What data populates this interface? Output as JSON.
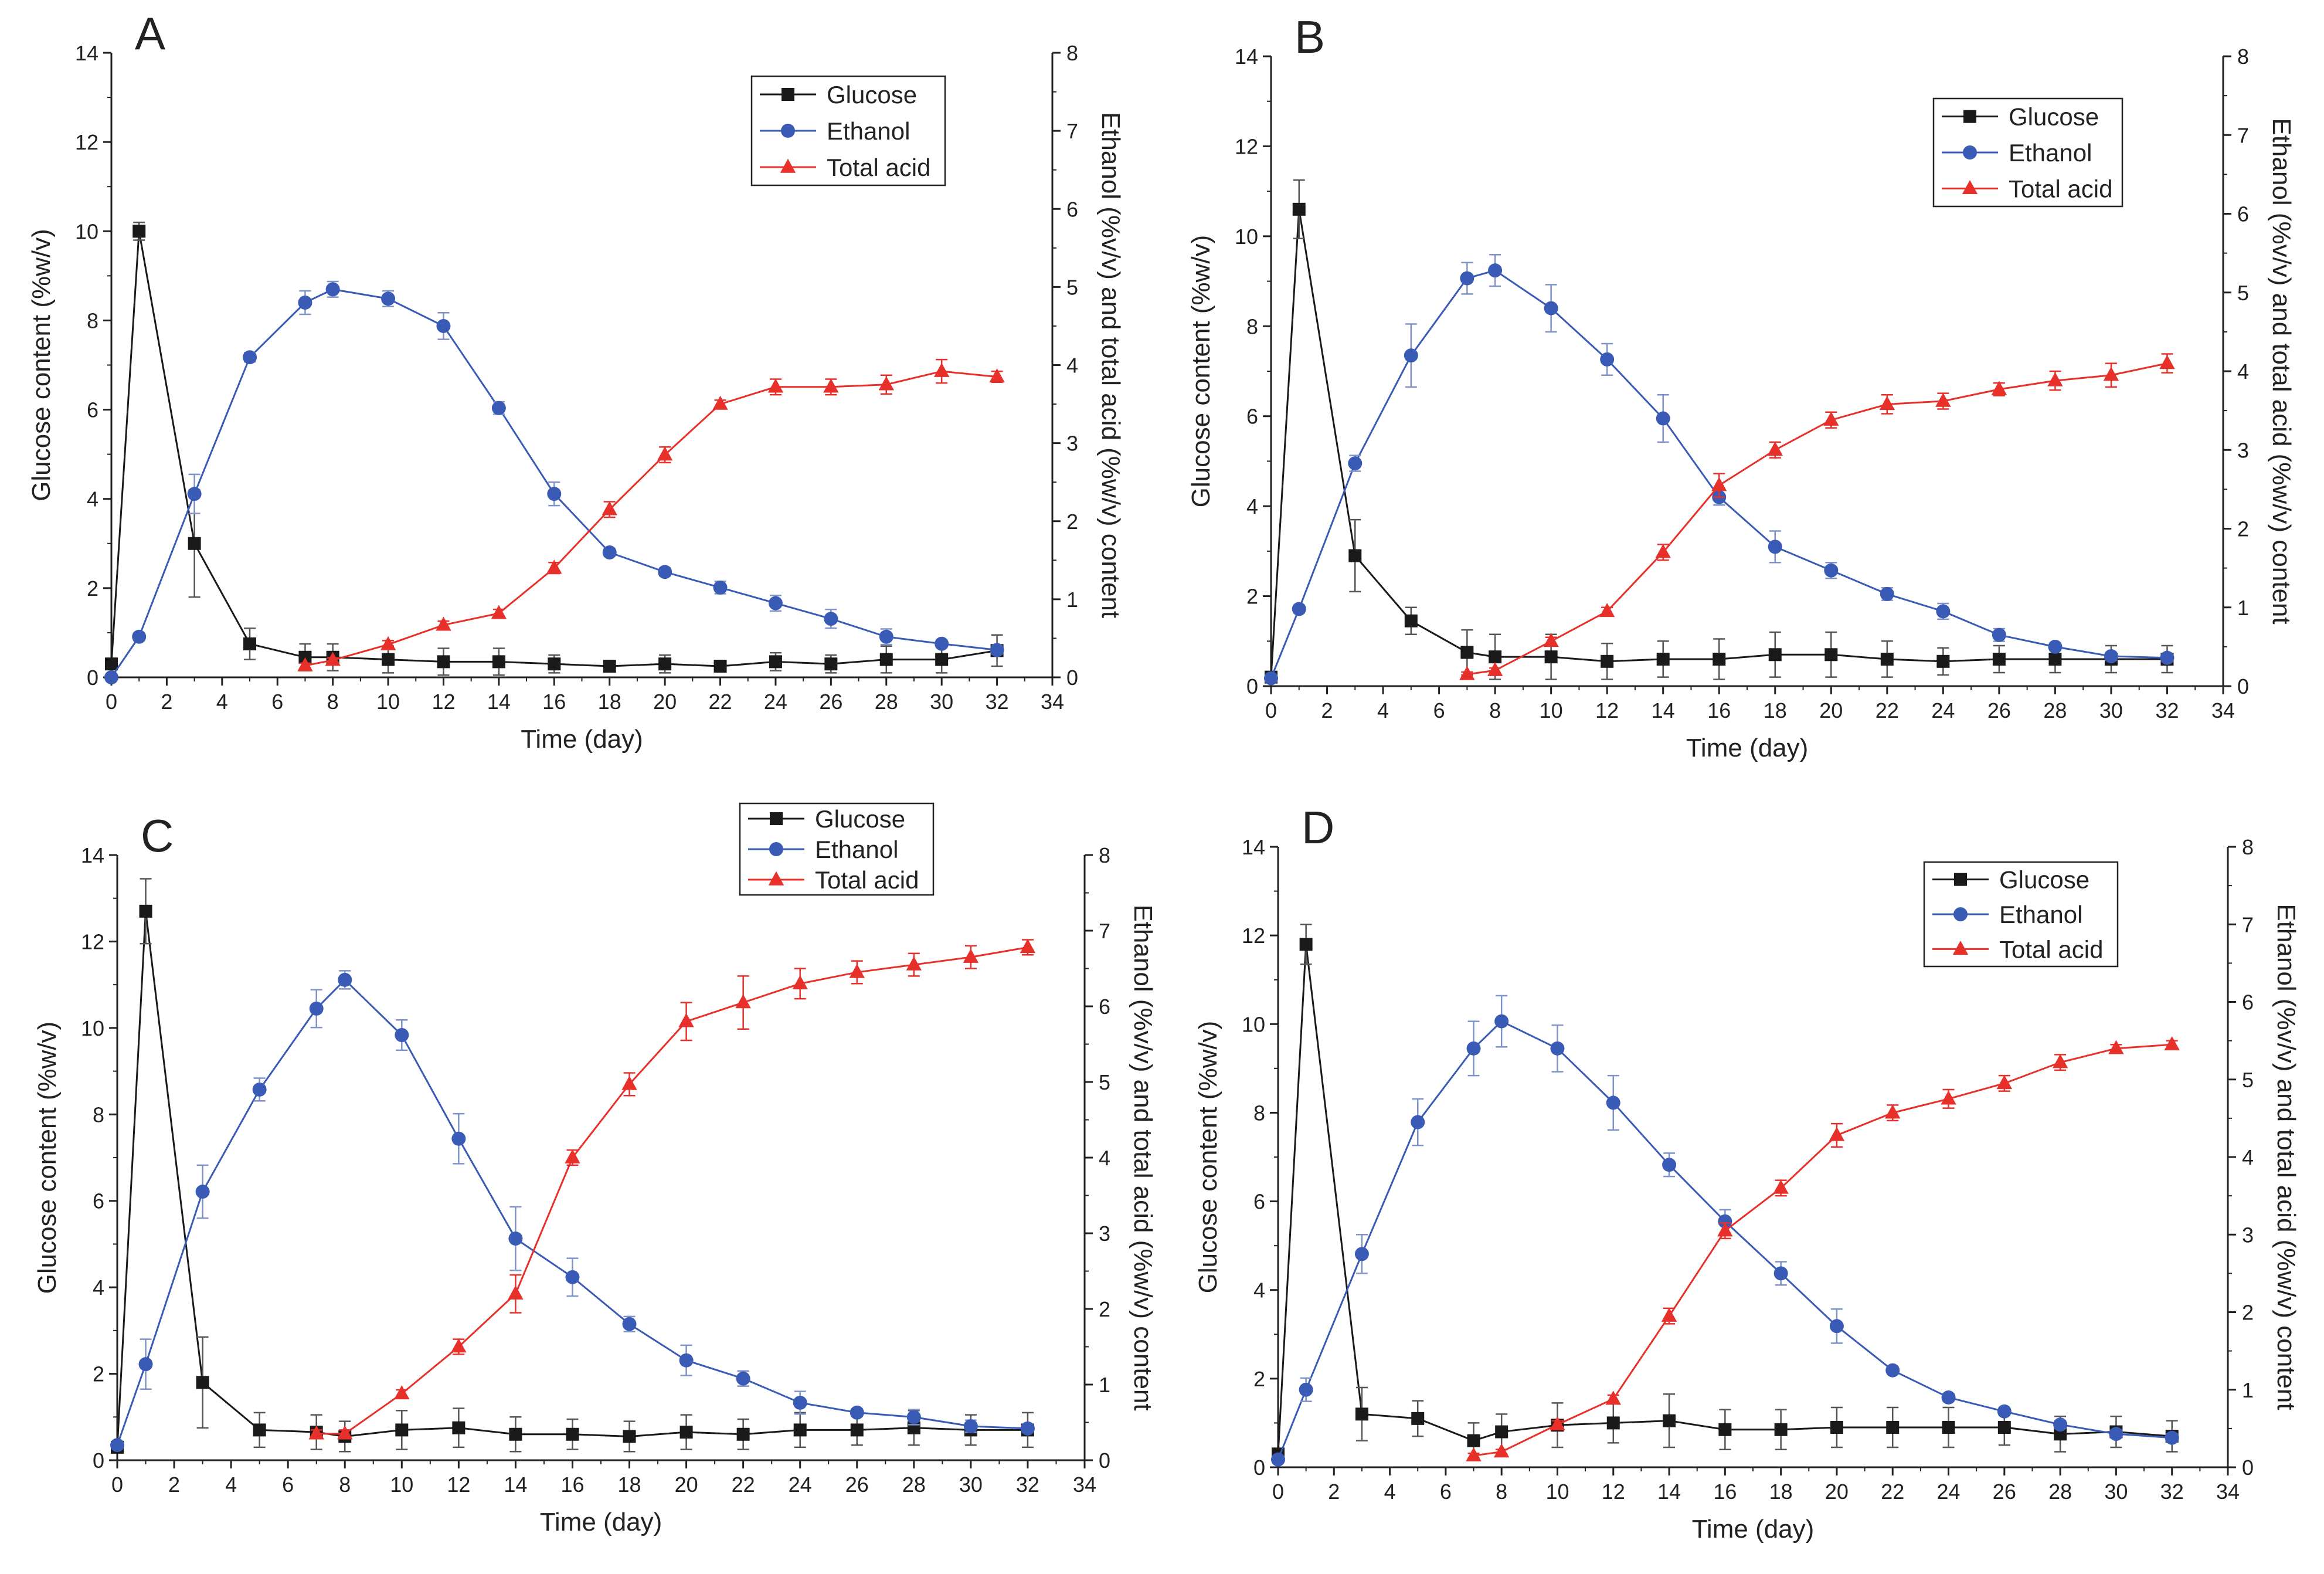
{
  "colors": {
    "glucose": "#1a1a1a",
    "ethanol": "#3a5bb5",
    "total_acid": "#e8302a",
    "error_ethanol": "#7f93c9",
    "error_glucose": "#555555",
    "error_acid": "#e8302a"
  },
  "chart_data": [
    {
      "type": "line",
      "panel": "A",
      "xlabel": "Time (day)",
      "ylabel": "Glucose content (%w/v)",
      "y2label": "Ethanol (%v/v) and total acid (%w/v) content",
      "xlim": [
        0,
        34
      ],
      "xticks": [
        0,
        2,
        4,
        6,
        8,
        10,
        12,
        14,
        16,
        18,
        20,
        22,
        24,
        26,
        28,
        30,
        32,
        34
      ],
      "ylim": [
        0,
        14
      ],
      "yticks": [
        0,
        2,
        4,
        6,
        8,
        10,
        12,
        14
      ],
      "y2lim": [
        0,
        8
      ],
      "y2ticks": [
        0,
        1,
        2,
        3,
        4,
        5,
        6,
        7,
        8
      ],
      "legend_position": "top-right",
      "series": [
        {
          "name": "Glucose",
          "axis": "left",
          "marker": "square",
          "color": "#1a1a1a",
          "x": [
            0,
            1,
            3,
            5,
            7,
            8,
            10,
            12,
            14,
            16,
            18,
            20,
            22,
            24,
            26,
            28,
            30,
            32
          ],
          "y": [
            0.3,
            10.0,
            3.0,
            0.75,
            0.45,
            0.45,
            0.4,
            0.35,
            0.35,
            0.3,
            0.25,
            0.3,
            0.25,
            0.35,
            0.3,
            0.4,
            0.4,
            0.6
          ],
          "err": [
            0.1,
            0.2,
            1.2,
            0.35,
            0.3,
            0.3,
            0.3,
            0.3,
            0.3,
            0.2,
            0.1,
            0.2,
            0.1,
            0.2,
            0.2,
            0.3,
            0.3,
            0.35
          ]
        },
        {
          "name": "Ethanol",
          "axis": "right",
          "marker": "circle",
          "color": "#3a5bb5",
          "x": [
            0,
            1,
            3,
            5,
            7,
            8,
            10,
            12,
            14,
            16,
            18,
            20,
            22,
            24,
            26,
            28,
            30,
            32
          ],
          "y": [
            0.0,
            0.52,
            2.35,
            4.1,
            4.8,
            4.97,
            4.85,
            4.5,
            3.45,
            2.35,
            1.6,
            1.35,
            1.15,
            0.95,
            0.75,
            0.52,
            0.43,
            0.35
          ],
          "err": [
            0,
            0.05,
            0.25,
            0.06,
            0.15,
            0.1,
            0.1,
            0.17,
            0.08,
            0.15,
            0.05,
            0.05,
            0.08,
            0.1,
            0.12,
            0.1,
            0.05,
            0.05
          ]
        },
        {
          "name": "Total acid",
          "axis": "right",
          "marker": "triangle",
          "color": "#e8302a",
          "x": [
            7,
            8,
            10,
            12,
            14,
            16,
            18,
            20,
            22,
            24,
            26,
            28,
            30,
            32
          ],
          "y": [
            0.15,
            0.22,
            0.42,
            0.67,
            0.82,
            1.4,
            2.15,
            2.85,
            3.5,
            3.72,
            3.72,
            3.75,
            3.92,
            3.85
          ],
          "err": [
            0.03,
            0.03,
            0.05,
            0.05,
            0.05,
            0.07,
            0.1,
            0.1,
            0.05,
            0.1,
            0.1,
            0.12,
            0.15,
            0.07
          ]
        }
      ]
    },
    {
      "type": "line",
      "panel": "B",
      "xlabel": "Time (day)",
      "ylabel": "Glucose content (%w/v)",
      "y2label": "Ethanol (%v/v) and total acid (%w/v) content",
      "xlim": [
        0,
        34
      ],
      "xticks": [
        0,
        2,
        4,
        6,
        8,
        10,
        12,
        14,
        16,
        18,
        20,
        22,
        24,
        26,
        28,
        30,
        32,
        34
      ],
      "ylim": [
        0,
        14
      ],
      "yticks": [
        0,
        2,
        4,
        6,
        8,
        10,
        12,
        14
      ],
      "y2lim": [
        0,
        8
      ],
      "y2ticks": [
        0,
        1,
        2,
        3,
        4,
        5,
        6,
        7,
        8
      ],
      "legend_position": "top-right",
      "series": [
        {
          "name": "Glucose",
          "axis": "left",
          "marker": "square",
          "color": "#1a1a1a",
          "x": [
            0,
            1,
            3,
            5,
            7,
            8,
            10,
            12,
            14,
            16,
            18,
            20,
            22,
            24,
            26,
            28,
            30,
            32
          ],
          "y": [
            0.2,
            10.6,
            2.9,
            1.45,
            0.75,
            0.65,
            0.65,
            0.55,
            0.6,
            0.6,
            0.7,
            0.7,
            0.6,
            0.55,
            0.6,
            0.6,
            0.6,
            0.6
          ],
          "err": [
            0.1,
            0.65,
            0.8,
            0.3,
            0.5,
            0.5,
            0.5,
            0.4,
            0.4,
            0.45,
            0.5,
            0.5,
            0.4,
            0.3,
            0.3,
            0.3,
            0.3,
            0.3
          ]
        },
        {
          "name": "Ethanol",
          "axis": "right",
          "marker": "circle",
          "color": "#3a5bb5",
          "x": [
            0,
            1,
            3,
            5,
            7,
            8,
            10,
            12,
            14,
            16,
            18,
            20,
            22,
            24,
            26,
            28,
            30,
            32
          ],
          "y": [
            0.1,
            0.98,
            2.83,
            4.2,
            5.18,
            5.28,
            4.8,
            4.15,
            3.4,
            2.4,
            1.77,
            1.47,
            1.17,
            0.95,
            0.65,
            0.5,
            0.38,
            0.36
          ],
          "err": [
            0,
            0.05,
            0.1,
            0.4,
            0.2,
            0.2,
            0.3,
            0.2,
            0.3,
            0.1,
            0.2,
            0.1,
            0.08,
            0.1,
            0.08,
            0.05,
            0.05,
            0.05
          ]
        },
        {
          "name": "Total acid",
          "axis": "right",
          "marker": "triangle",
          "color": "#e8302a",
          "x": [
            7,
            8,
            10,
            12,
            14,
            16,
            18,
            20,
            22,
            24,
            26,
            28,
            30,
            32
          ],
          "y": [
            0.15,
            0.2,
            0.57,
            0.95,
            1.7,
            2.55,
            3.0,
            3.38,
            3.58,
            3.62,
            3.77,
            3.88,
            3.95,
            4.1
          ],
          "err": [
            0.03,
            0.03,
            0.05,
            0.05,
            0.1,
            0.15,
            0.1,
            0.1,
            0.12,
            0.1,
            0.08,
            0.12,
            0.15,
            0.12
          ]
        }
      ]
    },
    {
      "type": "line",
      "panel": "C",
      "xlabel": "Time (day)",
      "ylabel": "Glucose content (%w/v)",
      "y2label": "Ethanol (%v/v) and total acid (%w/v) content",
      "xlim": [
        0,
        34
      ],
      "xticks": [
        0,
        2,
        4,
        6,
        8,
        10,
        12,
        14,
        16,
        18,
        20,
        22,
        24,
        26,
        28,
        30,
        32,
        34
      ],
      "ylim": [
        0,
        14
      ],
      "yticks": [
        0,
        2,
        4,
        6,
        8,
        10,
        12,
        14
      ],
      "y2lim": [
        0,
        8
      ],
      "y2ticks": [
        0,
        1,
        2,
        3,
        4,
        5,
        6,
        7,
        8
      ],
      "legend_position": "top-right",
      "series": [
        {
          "name": "Glucose",
          "axis": "left",
          "marker": "square",
          "color": "#1a1a1a",
          "x": [
            0,
            1,
            3,
            5,
            7,
            8,
            10,
            12,
            14,
            16,
            18,
            20,
            22,
            24,
            26,
            28,
            30,
            32
          ],
          "y": [
            0.3,
            12.7,
            1.8,
            0.7,
            0.65,
            0.55,
            0.7,
            0.75,
            0.6,
            0.6,
            0.55,
            0.65,
            0.6,
            0.7,
            0.7,
            0.75,
            0.7,
            0.7
          ],
          "err": [
            0.1,
            0.75,
            1.05,
            0.4,
            0.4,
            0.35,
            0.45,
            0.45,
            0.4,
            0.35,
            0.35,
            0.4,
            0.35,
            0.4,
            0.35,
            0.4,
            0.35,
            0.4
          ]
        },
        {
          "name": "Ethanol",
          "axis": "right",
          "marker": "circle",
          "color": "#3a5bb5",
          "x": [
            0,
            1,
            3,
            5,
            7,
            8,
            10,
            12,
            14,
            16,
            18,
            20,
            22,
            24,
            26,
            28,
            30,
            32
          ],
          "y": [
            0.2,
            1.27,
            3.55,
            4.9,
            5.97,
            6.35,
            5.62,
            4.25,
            2.93,
            2.42,
            1.8,
            1.32,
            1.08,
            0.76,
            0.63,
            0.57,
            0.45,
            0.42
          ],
          "err": [
            0,
            0.33,
            0.35,
            0.15,
            0.25,
            0.12,
            0.2,
            0.33,
            0.42,
            0.25,
            0.1,
            0.2,
            0.1,
            0.15,
            0.05,
            0.1,
            0.08,
            0.05
          ]
        },
        {
          "name": "Total acid",
          "axis": "right",
          "marker": "triangle",
          "color": "#e8302a",
          "x": [
            7,
            8,
            10,
            12,
            14,
            16,
            18,
            20,
            22,
            24,
            26,
            28,
            30,
            32
          ],
          "y": [
            0.35,
            0.35,
            0.88,
            1.5,
            2.2,
            4.0,
            4.97,
            5.8,
            6.05,
            6.3,
            6.45,
            6.55,
            6.65,
            6.78
          ],
          "err": [
            0.05,
            0.05,
            0.05,
            0.1,
            0.25,
            0.1,
            0.15,
            0.25,
            0.35,
            0.2,
            0.15,
            0.15,
            0.15,
            0.1
          ]
        }
      ]
    },
    {
      "type": "line",
      "panel": "D",
      "xlabel": "Time (day)",
      "ylabel": "Glucose content (%w/v)",
      "y2label": "Ethanol (%v/v) and total acid (%w/v) content",
      "xlim": [
        0,
        34
      ],
      "xticks": [
        0,
        2,
        4,
        6,
        8,
        10,
        12,
        14,
        16,
        18,
        20,
        22,
        24,
        26,
        28,
        30,
        32,
        34
      ],
      "ylim": [
        0,
        14
      ],
      "yticks": [
        0,
        2,
        4,
        6,
        8,
        10,
        12,
        14
      ],
      "y2lim": [
        0,
        8
      ],
      "y2ticks": [
        0,
        1,
        2,
        3,
        4,
        5,
        6,
        7,
        8
      ],
      "legend_position": "top-right",
      "series": [
        {
          "name": "Glucose",
          "axis": "left",
          "marker": "square",
          "color": "#1a1a1a",
          "x": [
            0,
            1,
            3,
            5,
            7,
            8,
            10,
            12,
            14,
            16,
            18,
            20,
            22,
            24,
            26,
            28,
            30,
            32
          ],
          "y": [
            0.3,
            11.8,
            1.2,
            1.1,
            0.6,
            0.8,
            0.95,
            1.0,
            1.05,
            0.85,
            0.85,
            0.9,
            0.9,
            0.9,
            0.9,
            0.75,
            0.8,
            0.7
          ],
          "err": [
            0.1,
            0.45,
            0.6,
            0.4,
            0.4,
            0.4,
            0.5,
            0.45,
            0.6,
            0.45,
            0.45,
            0.45,
            0.45,
            0.45,
            0.4,
            0.4,
            0.35,
            0.35
          ]
        },
        {
          "name": "Ethanol",
          "axis": "right",
          "marker": "circle",
          "color": "#3a5bb5",
          "x": [
            0,
            1,
            3,
            5,
            7,
            8,
            10,
            12,
            14,
            16,
            18,
            20,
            22,
            24,
            26,
            28,
            30,
            32
          ],
          "y": [
            0.1,
            1.0,
            2.75,
            4.45,
            5.4,
            5.75,
            5.4,
            4.7,
            3.9,
            3.17,
            2.5,
            1.82,
            1.25,
            0.9,
            0.72,
            0.55,
            0.43,
            0.38
          ],
          "err": [
            0,
            0.15,
            0.25,
            0.3,
            0.35,
            0.33,
            0.3,
            0.35,
            0.15,
            0.15,
            0.15,
            0.22,
            0.05,
            0.05,
            0.05,
            0.05,
            0.05,
            0.05
          ]
        },
        {
          "name": "Total acid",
          "axis": "right",
          "marker": "triangle",
          "color": "#e8302a",
          "x": [
            7,
            8,
            10,
            12,
            14,
            16,
            18,
            20,
            22,
            24,
            26,
            28,
            30,
            32
          ],
          "y": [
            0.15,
            0.2,
            0.55,
            0.88,
            1.95,
            3.05,
            3.6,
            4.28,
            4.57,
            4.75,
            4.95,
            5.22,
            5.4,
            5.45
          ],
          "err": [
            0.03,
            0.03,
            0.05,
            0.05,
            0.1,
            0.1,
            0.1,
            0.15,
            0.1,
            0.12,
            0.1,
            0.1,
            0.05,
            0.05
          ]
        }
      ]
    }
  ]
}
